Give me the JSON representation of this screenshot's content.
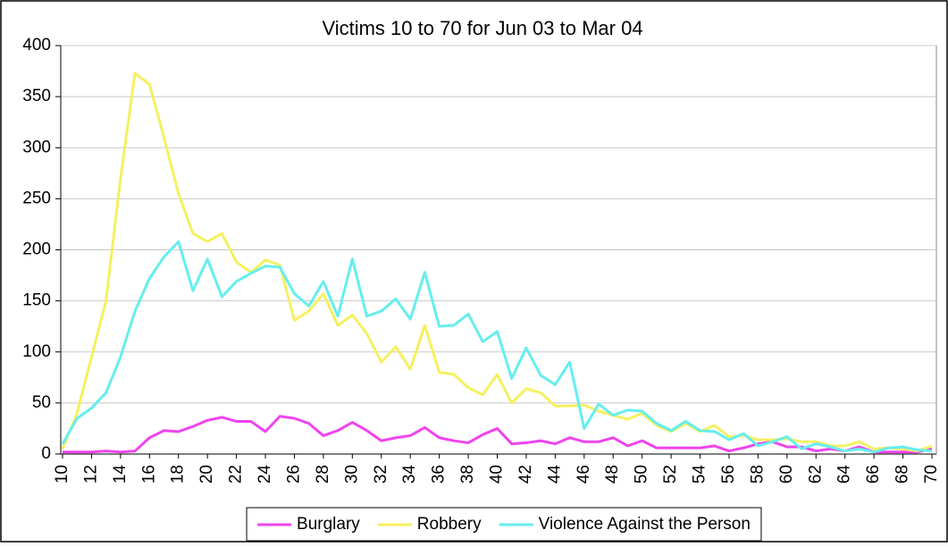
{
  "chart_data": {
    "type": "line",
    "title": "Victims 10 to 70 for Jun 03 to Mar 04",
    "x": [
      10,
      11,
      12,
      13,
      14,
      15,
      16,
      17,
      18,
      19,
      20,
      21,
      22,
      23,
      24,
      25,
      26,
      27,
      28,
      29,
      30,
      31,
      32,
      33,
      34,
      35,
      36,
      37,
      38,
      39,
      40,
      41,
      42,
      43,
      44,
      45,
      46,
      47,
      48,
      49,
      50,
      51,
      52,
      53,
      54,
      55,
      56,
      57,
      58,
      59,
      60,
      61,
      62,
      63,
      64,
      65,
      66,
      67,
      68,
      69,
      70
    ],
    "series": [
      {
        "name": "Burglary",
        "color": "#ee44ee",
        "values": [
          2,
          2,
          2,
          3,
          2,
          3,
          16,
          23,
          22,
          27,
          33,
          36,
          32,
          32,
          22,
          37,
          35,
          30,
          18,
          23,
          31,
          23,
          13,
          16,
          18,
          26,
          16,
          13,
          11,
          19,
          25,
          10,
          11,
          13,
          10,
          16,
          12,
          12,
          16,
          8,
          13,
          6,
          6,
          6,
          6,
          8,
          3,
          6,
          10,
          12,
          7,
          7,
          3,
          5,
          3,
          7,
          2,
          2,
          2,
          2,
          5
        ]
      },
      {
        "name": "Robbery",
        "color": "#f5f060",
        "values": [
          5,
          40,
          95,
          150,
          270,
          373,
          362,
          310,
          255,
          216,
          208,
          216,
          188,
          178,
          190,
          185,
          131,
          140,
          157,
          126,
          136,
          118,
          90,
          105,
          83,
          126,
          80,
          78,
          65,
          58,
          78,
          50,
          64,
          60,
          47,
          47,
          48,
          42,
          38,
          34,
          40,
          28,
          22,
          30,
          22,
          28,
          17,
          18,
          14,
          14,
          15,
          12,
          12,
          8,
          8,
          12,
          5,
          6,
          5,
          3,
          8
        ]
      },
      {
        "name": "Violence Against the Person",
        "color": "#66eeee",
        "values": [
          10,
          35,
          45,
          60,
          95,
          140,
          172,
          193,
          208,
          160,
          191,
          154,
          169,
          177,
          184,
          183,
          157,
          145,
          169,
          135,
          191,
          135,
          140,
          152,
          132,
          178,
          125,
          126,
          137,
          110,
          120,
          74,
          104,
          77,
          68,
          90,
          25,
          49,
          38,
          43,
          42,
          30,
          23,
          32,
          23,
          22,
          14,
          20,
          8,
          12,
          17,
          5,
          10,
          7,
          3,
          5,
          2,
          6,
          7,
          4,
          3
        ]
      }
    ],
    "xlim": [
      10,
      70
    ],
    "xticks": [
      10,
      12,
      14,
      16,
      18,
      20,
      22,
      24,
      26,
      28,
      30,
      32,
      34,
      36,
      38,
      40,
      42,
      44,
      46,
      48,
      50,
      52,
      54,
      56,
      58,
      60,
      62,
      64,
      66,
      68,
      70
    ],
    "ylim": [
      0,
      400
    ],
    "yticks": [
      0,
      50,
      100,
      150,
      200,
      250,
      300,
      350,
      400
    ],
    "grid": true,
    "legend": "bottom"
  }
}
